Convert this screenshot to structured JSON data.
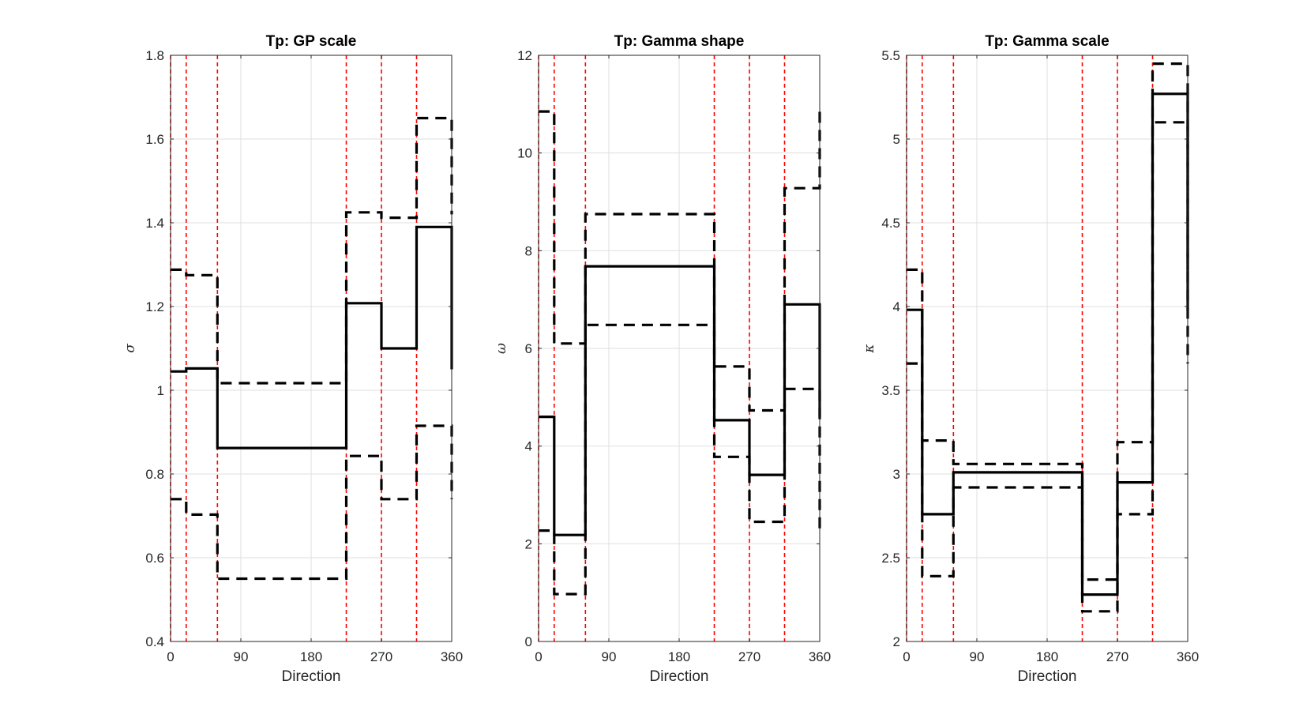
{
  "chart_data": [
    {
      "type": "line",
      "title": "Tp: GP scale",
      "xlabel": "Direction",
      "ylabel": "σ",
      "xlim": [
        0,
        360
      ],
      "ylim": [
        0.4,
        1.8
      ],
      "xticks": [
        0,
        90,
        180,
        270,
        360
      ],
      "xtick_labels": [
        "0",
        "90",
        "180",
        "270",
        "360"
      ],
      "yticks": [
        0.4,
        0.6,
        0.8,
        1.0,
        1.2,
        1.4,
        1.6,
        1.8
      ],
      "ytick_labels": [
        "0.4",
        "0.6",
        "0.8",
        "1",
        "1.2",
        "1.4",
        "1.6",
        "1.8"
      ],
      "grid": true,
      "boundaries": [
        0,
        20,
        60,
        225,
        270,
        315
      ],
      "series": [
        {
          "style": "solid",
          "x": [
            0,
            20,
            60,
            225,
            270,
            315,
            360
          ],
          "y": [
            1.045,
            1.052,
            0.862,
            1.208,
            1.1,
            1.39,
            1.05
          ]
        },
        {
          "style": "dashed",
          "x": [
            0,
            20,
            60,
            225,
            270,
            315,
            360
          ],
          "y": [
            1.288,
            1.275,
            1.017,
            1.425,
            1.412,
            1.65,
            1.42
          ]
        },
        {
          "style": "dashed",
          "x": [
            0,
            20,
            60,
            225,
            270,
            315,
            360
          ],
          "y": [
            0.74,
            0.703,
            0.55,
            0.843,
            0.74,
            0.915,
            0.74
          ]
        }
      ]
    },
    {
      "type": "line",
      "title": "Tp: Gamma shape",
      "xlabel": "Direction",
      "ylabel": "ω",
      "xlim": [
        0,
        360
      ],
      "ylim": [
        0,
        12
      ],
      "xticks": [
        0,
        90,
        180,
        270,
        360
      ],
      "xtick_labels": [
        "0",
        "90",
        "180",
        "270",
        "360"
      ],
      "yticks": [
        0,
        2,
        4,
        6,
        8,
        10,
        12
      ],
      "ytick_labels": [
        "0",
        "2",
        "4",
        "6",
        "8",
        "10",
        "12"
      ],
      "grid": true,
      "boundaries": [
        0,
        20,
        60,
        225,
        270,
        315
      ],
      "series": [
        {
          "style": "solid",
          "x": [
            0,
            20,
            60,
            225,
            270,
            315,
            360
          ],
          "y": [
            4.6,
            2.18,
            7.68,
            4.53,
            3.41,
            6.9,
            4.6
          ]
        },
        {
          "style": "dashed",
          "x": [
            0,
            20,
            60,
            225,
            270,
            315,
            360
          ],
          "y": [
            10.85,
            6.1,
            8.75,
            5.63,
            4.73,
            9.28,
            10.9
          ]
        },
        {
          "style": "dashed",
          "x": [
            0,
            20,
            60,
            225,
            270,
            315,
            360
          ],
          "y": [
            2.27,
            0.97,
            6.48,
            3.78,
            2.45,
            5.17,
            2.27
          ]
        }
      ]
    },
    {
      "type": "line",
      "title": "Tp: Gamma scale",
      "xlabel": "Direction",
      "ylabel": "κ",
      "xlim": [
        0,
        360
      ],
      "ylim": [
        2,
        5.5
      ],
      "xticks": [
        0,
        90,
        180,
        270,
        360
      ],
      "xtick_labels": [
        "0",
        "90",
        "180",
        "270",
        "360"
      ],
      "yticks": [
        2,
        2.5,
        3,
        3.5,
        4,
        4.5,
        5,
        5.5
      ],
      "ytick_labels": [
        "2",
        "2.5",
        "3",
        "3.5",
        "4",
        "4.5",
        "5",
        "5.5"
      ],
      "grid": true,
      "boundaries": [
        0,
        20,
        60,
        225,
        270,
        315
      ],
      "series": [
        {
          "style": "solid",
          "x": [
            0,
            20,
            60,
            225,
            270,
            315,
            360
          ],
          "y": [
            3.98,
            2.76,
            3.01,
            2.28,
            2.95,
            5.27,
            3.98
          ]
        },
        {
          "style": "dashed",
          "x": [
            0,
            20,
            60,
            225,
            270,
            315,
            360
          ],
          "y": [
            4.22,
            3.2,
            3.06,
            2.37,
            3.19,
            5.45,
            4.22
          ]
        },
        {
          "style": "dashed",
          "x": [
            0,
            20,
            60,
            225,
            270,
            315,
            360
          ],
          "y": [
            3.66,
            2.39,
            2.92,
            2.18,
            2.76,
            5.1,
            3.66
          ]
        }
      ]
    }
  ],
  "colors": {
    "boundary": "#ff0000",
    "line": "#000000",
    "grid": "#dfdfdf",
    "axis": "#262626"
  }
}
